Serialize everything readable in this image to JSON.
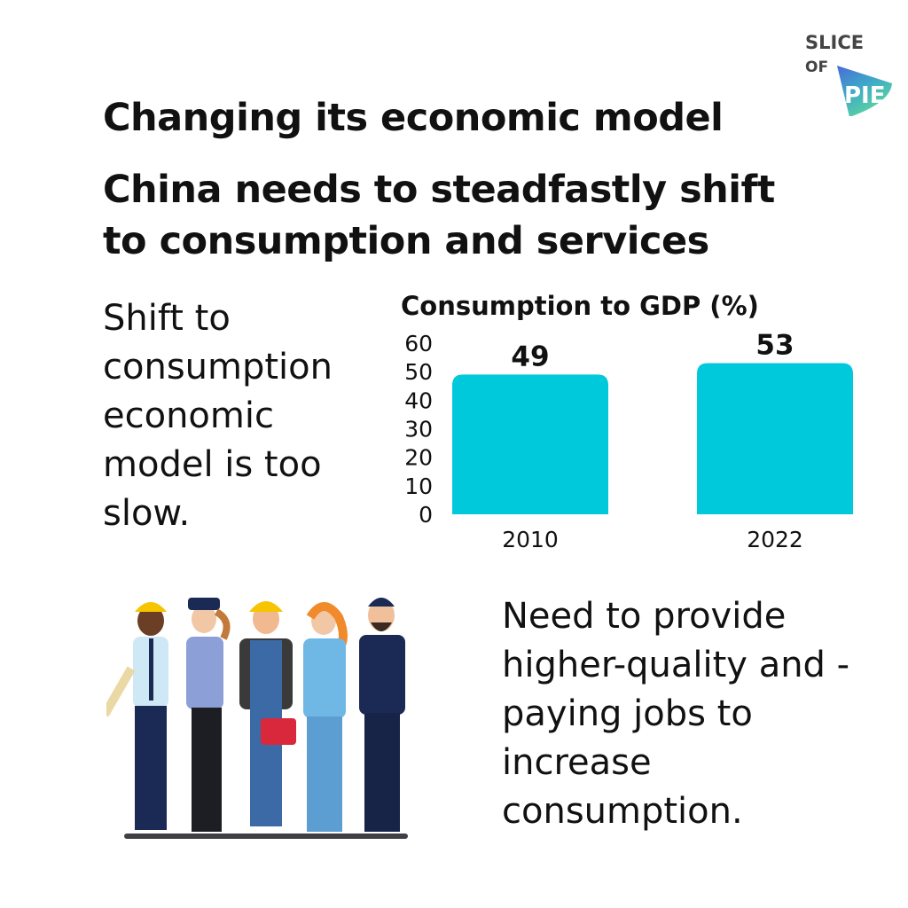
{
  "logo": {
    "line1": "SLICE",
    "line2": "OF",
    "line3": "PIE"
  },
  "title": "Changing its economic model",
  "subtitle": "China needs to steadfastly shift to consumption and services",
  "left_text": "Shift to consumption economic model is too slow.",
  "right_text": "Need to provide higher-quality and -paying jobs to increase consumption.",
  "colors": {
    "bar": "#00c9dc",
    "text": "#111111"
  },
  "chart_data": {
    "type": "bar",
    "title": "Consumption to GDP (%)",
    "categories": [
      "2010",
      "2022"
    ],
    "values": [
      49,
      53
    ],
    "data_labels": [
      "49",
      "53"
    ],
    "xlabel": "",
    "ylabel": "",
    "ylim": [
      0,
      60
    ],
    "yticks": [
      0,
      10,
      20,
      30,
      40,
      50,
      60
    ],
    "grid": false
  }
}
